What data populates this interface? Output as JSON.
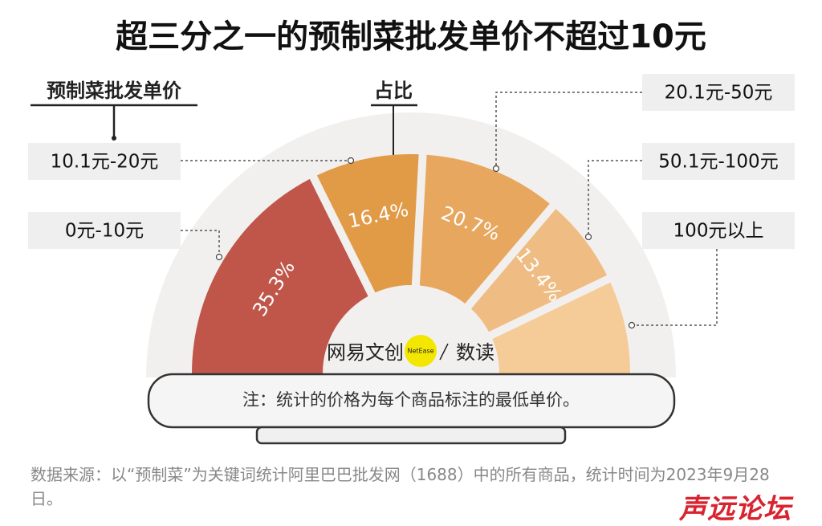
{
  "chart_data": {
    "type": "semi-donut",
    "title": "超三分之一的预制菜批发单价不超过10元",
    "legend_title": "预制菜批发单价",
    "value_title": "占比",
    "categories": [
      "0元-10元",
      "10.1元-20元",
      "20.1元-50元",
      "50.1元-100元",
      "100元以上"
    ],
    "values": [
      35.3,
      16.4,
      20.7,
      13.4,
      14.2
    ],
    "value_labels": [
      "35.3%",
      "16.4%",
      "20.7%",
      "13.4%",
      null
    ],
    "colors": [
      "#c0564a",
      "#e19a45",
      "#e8a75f",
      "#efbd83",
      "#f5cb98"
    ],
    "note": "注：统计的价格为每个商品标注的最低单价。",
    "logo": "网易文创",
    "logo_badge": "NetEase",
    "logo_sub": "数读",
    "source": "数据来源：以“预制菜”为关键词统计阿里巴巴批发网（1688）中的所有商品，统计时间为2023年9月28日。",
    "watermark": "声远论坛"
  }
}
